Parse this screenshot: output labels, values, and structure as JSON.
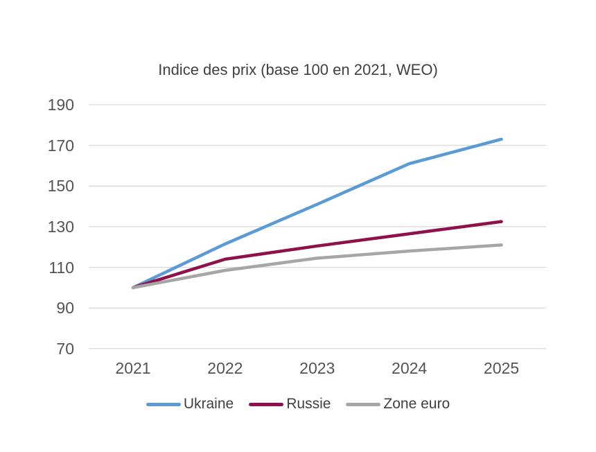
{
  "chart_data": {
    "type": "line",
    "title": "Indice des prix (base 100 en 2021, WEO)",
    "categories": [
      "2021",
      "2022",
      "2023",
      "2024",
      "2025"
    ],
    "series": [
      {
        "name": "Ukraine",
        "color": "#5B9BD5",
        "values": [
          100,
          121.5,
          141,
          161,
          173
        ]
      },
      {
        "name": "Russie",
        "color": "#8E104C",
        "values": [
          100,
          114,
          120.5,
          126.5,
          132.5
        ]
      },
      {
        "name": "Zone euro",
        "color": "#A6A6A6",
        "values": [
          100,
          108.5,
          114.5,
          118,
          121
        ]
      }
    ],
    "xlabel": "",
    "ylabel": "",
    "y_ticks": [
      190,
      170,
      150,
      130,
      110,
      90,
      70
    ],
    "ylim": [
      70,
      190
    ],
    "grid": "horizontal",
    "gridline_color": "#D9D9D9",
    "legend_position": "bottom",
    "text_color": "#404040"
  }
}
